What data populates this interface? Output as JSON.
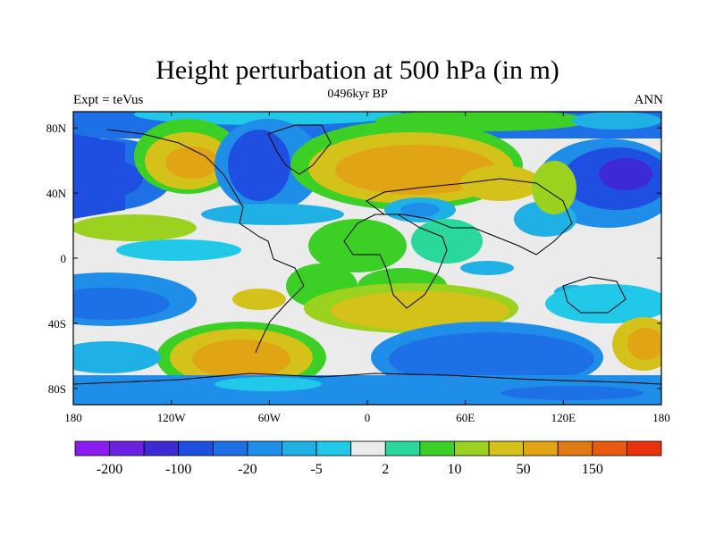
{
  "header": {
    "title": "Height perturbation at 500 hPa (in m)",
    "left_label": "Expt = teVus",
    "center_label": "0496kyr BP",
    "right_label": "ANN"
  },
  "map": {
    "lon_ticks": [
      "180",
      "120W",
      "60W",
      "0",
      "60E",
      "120E",
      "180"
    ],
    "lat_ticks": [
      "80N",
      "40N",
      "0",
      "40S",
      "80S"
    ]
  },
  "colorbar": {
    "colors": [
      "#8a1cf0",
      "#6a22e0",
      "#3c2ad6",
      "#1f4fe0",
      "#1e70e6",
      "#1e8ee8",
      "#1fb0e6",
      "#22c8e8",
      "#ebebeb",
      "#2bd89c",
      "#3cd027",
      "#9ad21f",
      "#d4c21a",
      "#e0a414",
      "#e07a12",
      "#e85a10",
      "#e8320e"
    ],
    "labels": [
      "-200",
      "-100",
      "-20",
      "-5",
      "2",
      "10",
      "50",
      "150"
    ]
  }
}
